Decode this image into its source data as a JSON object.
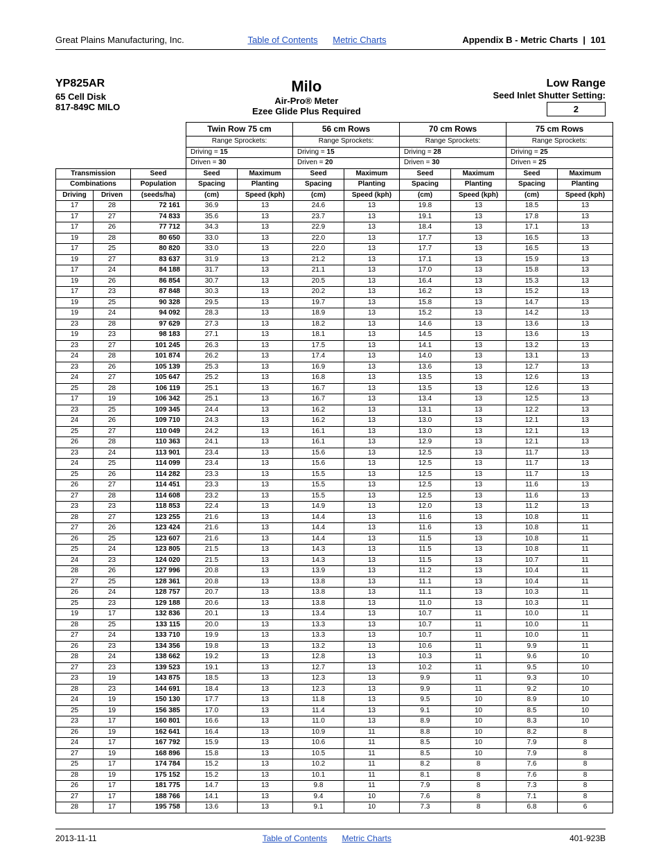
{
  "header": {
    "company": "Great Plains Manufacturing, Inc.",
    "toc": "Table of Contents",
    "mc": "Metric Charts",
    "appendix": "Appendix B - Metric Charts",
    "page": "101"
  },
  "title": {
    "model": "YP825AR",
    "disk": "65 Cell Disk",
    "part": "817-849C MILO",
    "crop": "Milo",
    "meter": "Air-Pro® Meter",
    "glide": "Ezee Glide Plus Required",
    "range": "Low Range",
    "inlet": "Seed Inlet Shutter Setting:",
    "inlet_val": "2"
  },
  "configs": [
    {
      "name": "Twin Row 75 cm",
      "driving": "15",
      "driven": "30"
    },
    {
      "name": "56 cm Rows",
      "driving": "15",
      "driven": "20"
    },
    {
      "name": "70 cm Rows",
      "driving": "28",
      "driven": "30"
    },
    {
      "name": "75 cm Rows",
      "driving": "25",
      "driven": "25"
    }
  ],
  "labels": {
    "range_spr": "Range Sprockets:",
    "driving_eq": "Driving = ",
    "driven_eq": "Driven = ",
    "trans": "Transmission",
    "combos": "Combinations",
    "drv": "Driving",
    "drn": "Driven",
    "seed": "Seed",
    "pop": "Population",
    "seedsha": "(seeds/ha)",
    "spacing_h": "Seed",
    "spacing": "Spacing",
    "cm": "(cm)",
    "max": "Maximum",
    "plant": "Planting",
    "speed": "Speed (kph)"
  },
  "rows": [
    [
      "17",
      "28",
      "72 161",
      "36.9",
      "13",
      "24.6",
      "13",
      "19.8",
      "13",
      "18.5",
      "13"
    ],
    [
      "17",
      "27",
      "74 833",
      "35.6",
      "13",
      "23.7",
      "13",
      "19.1",
      "13",
      "17.8",
      "13"
    ],
    [
      "17",
      "26",
      "77 712",
      "34.3",
      "13",
      "22.9",
      "13",
      "18.4",
      "13",
      "17.1",
      "13"
    ],
    [
      "19",
      "28",
      "80 650",
      "33.0",
      "13",
      "22.0",
      "13",
      "17.7",
      "13",
      "16.5",
      "13"
    ],
    [
      "17",
      "25",
      "80 820",
      "33.0",
      "13",
      "22.0",
      "13",
      "17.7",
      "13",
      "16.5",
      "13"
    ],
    [
      "19",
      "27",
      "83 637",
      "31.9",
      "13",
      "21.2",
      "13",
      "17.1",
      "13",
      "15.9",
      "13"
    ],
    [
      "17",
      "24",
      "84 188",
      "31.7",
      "13",
      "21.1",
      "13",
      "17.0",
      "13",
      "15.8",
      "13"
    ],
    [
      "19",
      "26",
      "86 854",
      "30.7",
      "13",
      "20.5",
      "13",
      "16.4",
      "13",
      "15.3",
      "13"
    ],
    [
      "17",
      "23",
      "87 848",
      "30.3",
      "13",
      "20.2",
      "13",
      "16.2",
      "13",
      "15.2",
      "13"
    ],
    [
      "19",
      "25",
      "90 328",
      "29.5",
      "13",
      "19.7",
      "13",
      "15.8",
      "13",
      "14.7",
      "13"
    ],
    [
      "19",
      "24",
      "94 092",
      "28.3",
      "13",
      "18.9",
      "13",
      "15.2",
      "13",
      "14.2",
      "13"
    ],
    [
      "23",
      "28",
      "97 629",
      "27.3",
      "13",
      "18.2",
      "13",
      "14.6",
      "13",
      "13.6",
      "13"
    ],
    [
      "19",
      "23",
      "98 183",
      "27.1",
      "13",
      "18.1",
      "13",
      "14.5",
      "13",
      "13.6",
      "13"
    ],
    [
      "23",
      "27",
      "101 245",
      "26.3",
      "13",
      "17.5",
      "13",
      "14.1",
      "13",
      "13.2",
      "13"
    ],
    [
      "24",
      "28",
      "101 874",
      "26.2",
      "13",
      "17.4",
      "13",
      "14.0",
      "13",
      "13.1",
      "13"
    ],
    [
      "23",
      "26",
      "105 139",
      "25.3",
      "13",
      "16.9",
      "13",
      "13.6",
      "13",
      "12.7",
      "13"
    ],
    [
      "24",
      "27",
      "105 647",
      "25.2",
      "13",
      "16.8",
      "13",
      "13.5",
      "13",
      "12.6",
      "13"
    ],
    [
      "25",
      "28",
      "106 119",
      "25.1",
      "13",
      "16.7",
      "13",
      "13.5",
      "13",
      "12.6",
      "13"
    ],
    [
      "17",
      "19",
      "106 342",
      "25.1",
      "13",
      "16.7",
      "13",
      "13.4",
      "13",
      "12.5",
      "13"
    ],
    [
      "23",
      "25",
      "109 345",
      "24.4",
      "13",
      "16.2",
      "13",
      "13.1",
      "13",
      "12.2",
      "13"
    ],
    [
      "24",
      "26",
      "109 710",
      "24.3",
      "13",
      "16.2",
      "13",
      "13.0",
      "13",
      "12.1",
      "13"
    ],
    [
      "25",
      "27",
      "110 049",
      "24.2",
      "13",
      "16.1",
      "13",
      "13.0",
      "13",
      "12.1",
      "13"
    ],
    [
      "26",
      "28",
      "110 363",
      "24.1",
      "13",
      "16.1",
      "13",
      "12.9",
      "13",
      "12.1",
      "13"
    ],
    [
      "23",
      "24",
      "113 901",
      "23.4",
      "13",
      "15.6",
      "13",
      "12.5",
      "13",
      "11.7",
      "13"
    ],
    [
      "24",
      "25",
      "114 099",
      "23.4",
      "13",
      "15.6",
      "13",
      "12.5",
      "13",
      "11.7",
      "13"
    ],
    [
      "25",
      "26",
      "114 282",
      "23.3",
      "13",
      "15.5",
      "13",
      "12.5",
      "13",
      "11.7",
      "13"
    ],
    [
      "26",
      "27",
      "114 451",
      "23.3",
      "13",
      "15.5",
      "13",
      "12.5",
      "13",
      "11.6",
      "13"
    ],
    [
      "27",
      "28",
      "114 608",
      "23.2",
      "13",
      "15.5",
      "13",
      "12.5",
      "13",
      "11.6",
      "13"
    ],
    [
      "23",
      "23",
      "118 853",
      "22.4",
      "13",
      "14.9",
      "13",
      "12.0",
      "13",
      "11.2",
      "13"
    ],
    [
      "28",
      "27",
      "123 255",
      "21.6",
      "13",
      "14.4",
      "13",
      "11.6",
      "13",
      "10.8",
      "11"
    ],
    [
      "27",
      "26",
      "123 424",
      "21.6",
      "13",
      "14.4",
      "13",
      "11.6",
      "13",
      "10.8",
      "11"
    ],
    [
      "26",
      "25",
      "123 607",
      "21.6",
      "13",
      "14.4",
      "13",
      "11.5",
      "13",
      "10.8",
      "11"
    ],
    [
      "25",
      "24",
      "123 805",
      "21.5",
      "13",
      "14.3",
      "13",
      "11.5",
      "13",
      "10.8",
      "11"
    ],
    [
      "24",
      "23",
      "124 020",
      "21.5",
      "13",
      "14.3",
      "13",
      "11.5",
      "13",
      "10.7",
      "11"
    ],
    [
      "28",
      "26",
      "127 996",
      "20.8",
      "13",
      "13.9",
      "13",
      "11.2",
      "13",
      "10.4",
      "11"
    ],
    [
      "27",
      "25",
      "128 361",
      "20.8",
      "13",
      "13.8",
      "13",
      "11.1",
      "13",
      "10.4",
      "11"
    ],
    [
      "26",
      "24",
      "128 757",
      "20.7",
      "13",
      "13.8",
      "13",
      "11.1",
      "13",
      "10.3",
      "11"
    ],
    [
      "25",
      "23",
      "129 188",
      "20.6",
      "13",
      "13.8",
      "13",
      "11.0",
      "13",
      "10.3",
      "11"
    ],
    [
      "19",
      "17",
      "132 836",
      "20.1",
      "13",
      "13.4",
      "13",
      "10.7",
      "11",
      "10.0",
      "11"
    ],
    [
      "28",
      "25",
      "133 115",
      "20.0",
      "13",
      "13.3",
      "13",
      "10.7",
      "11",
      "10.0",
      "11"
    ],
    [
      "27",
      "24",
      "133 710",
      "19.9",
      "13",
      "13.3",
      "13",
      "10.7",
      "11",
      "10.0",
      "11"
    ],
    [
      "26",
      "23",
      "134 356",
      "19.8",
      "13",
      "13.2",
      "13",
      "10.6",
      "11",
      "9.9",
      "11"
    ],
    [
      "28",
      "24",
      "138 662",
      "19.2",
      "13",
      "12.8",
      "13",
      "10.3",
      "11",
      "9.6",
      "10"
    ],
    [
      "27",
      "23",
      "139 523",
      "19.1",
      "13",
      "12.7",
      "13",
      "10.2",
      "11",
      "9.5",
      "10"
    ],
    [
      "23",
      "19",
      "143 875",
      "18.5",
      "13",
      "12.3",
      "13",
      "9.9",
      "11",
      "9.3",
      "10"
    ],
    [
      "28",
      "23",
      "144 691",
      "18.4",
      "13",
      "12.3",
      "13",
      "9.9",
      "11",
      "9.2",
      "10"
    ],
    [
      "24",
      "19",
      "150 130",
      "17.7",
      "13",
      "11.8",
      "13",
      "9.5",
      "10",
      "8.9",
      "10"
    ],
    [
      "25",
      "19",
      "156 385",
      "17.0",
      "13",
      "11.4",
      "13",
      "9.1",
      "10",
      "8.5",
      "10"
    ],
    [
      "23",
      "17",
      "160 801",
      "16.6",
      "13",
      "11.0",
      "13",
      "8.9",
      "10",
      "8.3",
      "10"
    ],
    [
      "26",
      "19",
      "162 641",
      "16.4",
      "13",
      "10.9",
      "11",
      "8.8",
      "10",
      "8.2",
      "8"
    ],
    [
      "24",
      "17",
      "167 792",
      "15.9",
      "13",
      "10.6",
      "11",
      "8.5",
      "10",
      "7.9",
      "8"
    ],
    [
      "27",
      "19",
      "168 896",
      "15.8",
      "13",
      "10.5",
      "11",
      "8.5",
      "10",
      "7.9",
      "8"
    ],
    [
      "25",
      "17",
      "174 784",
      "15.2",
      "13",
      "10.2",
      "11",
      "8.2",
      "8",
      "7.6",
      "8"
    ],
    [
      "28",
      "19",
      "175 152",
      "15.2",
      "13",
      "10.1",
      "11",
      "8.1",
      "8",
      "7.6",
      "8"
    ],
    [
      "26",
      "17",
      "181 775",
      "14.7",
      "13",
      "9.8",
      "11",
      "7.9",
      "8",
      "7.3",
      "8"
    ],
    [
      "27",
      "17",
      "188 766",
      "14.1",
      "13",
      "9.4",
      "10",
      "7.6",
      "8",
      "7.1",
      "8"
    ],
    [
      "28",
      "17",
      "195 758",
      "13.6",
      "13",
      "9.1",
      "10",
      "7.3",
      "8",
      "6.8",
      "6"
    ]
  ],
  "footer": {
    "date": "2013-11-11",
    "toc": "Table of Contents",
    "mc": "Metric Charts",
    "doc": "401-923B"
  }
}
